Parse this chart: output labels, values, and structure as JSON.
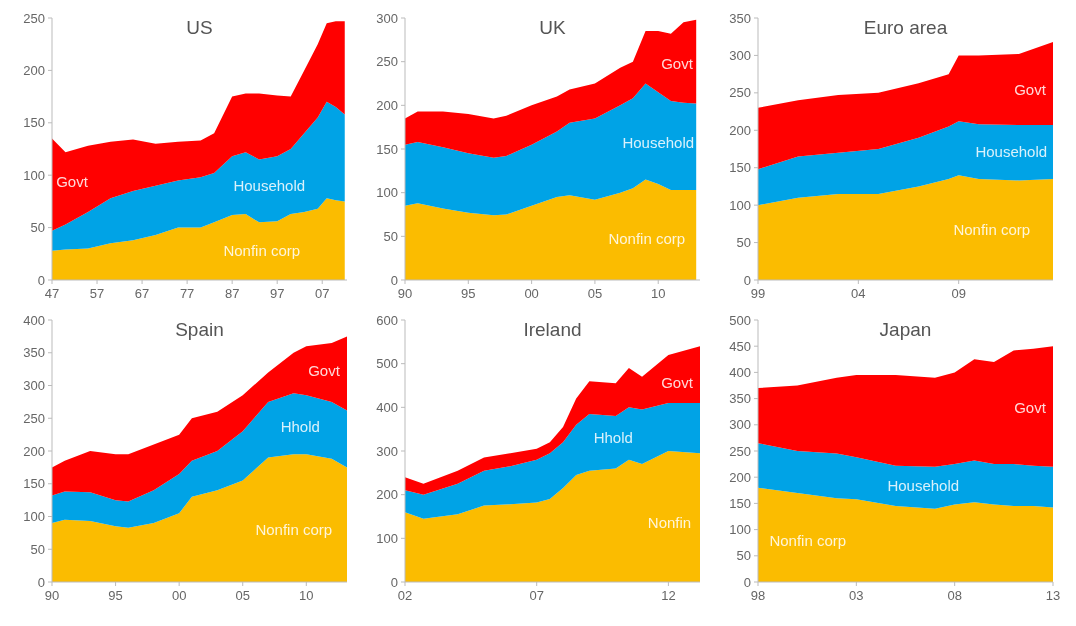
{
  "chart_data": [
    {
      "type": "area",
      "title": "US",
      "stacked": true,
      "x": [
        1947,
        1950,
        1955,
        1960,
        1965,
        1970,
        1975,
        1980,
        1983,
        1987,
        1990,
        1993,
        1997,
        2000,
        2003,
        2006,
        2008,
        2010,
        2012
      ],
      "xlim": [
        1947,
        2012.5
      ],
      "xticks": [
        {
          "value": 1947,
          "label": "47"
        },
        {
          "value": 1957,
          "label": "57"
        },
        {
          "value": 1967,
          "label": "67"
        },
        {
          "value": 1977,
          "label": "77"
        },
        {
          "value": 1987,
          "label": "87"
        },
        {
          "value": 1997,
          "label": "97"
        },
        {
          "value": 2007,
          "label": "07"
        }
      ],
      "ylim": [
        0,
        250
      ],
      "yticks": [
        0,
        50,
        100,
        150,
        200,
        250
      ],
      "series": [
        {
          "name": "Nonfin corp",
          "color": "#fbbc00",
          "values": [
            28,
            29,
            30,
            35,
            38,
            43,
            50,
            50,
            55,
            62,
            63,
            55,
            56,
            63,
            65,
            68,
            78,
            76,
            75
          ]
        },
        {
          "name": "Household",
          "color": "#00a3e6",
          "values": [
            19,
            24,
            35,
            43,
            47,
            47,
            45,
            48,
            47,
            56,
            59,
            60,
            62,
            62,
            75,
            87,
            92,
            89,
            83
          ]
        },
        {
          "name": "Govt",
          "color": "#ff0000",
          "values": [
            88,
            69,
            63,
            54,
            49,
            40,
            37,
            35,
            38,
            57,
            56,
            63,
            58,
            50,
            60,
            70,
            75,
            82,
            89
          ]
        }
      ]
    },
    {
      "type": "area",
      "title": "UK",
      "stacked": true,
      "x": [
        1990,
        1991,
        1993,
        1995,
        1997,
        1998,
        2000,
        2002,
        2003,
        2005,
        2007,
        2008,
        2009,
        2010,
        2011,
        2012,
        2013
      ],
      "xlim": [
        1990,
        2013.3
      ],
      "xticks": [
        {
          "value": 1990,
          "label": "90"
        },
        {
          "value": 1995,
          "label": "95"
        },
        {
          "value": 2000,
          "label": "00"
        },
        {
          "value": 2005,
          "label": "05"
        },
        {
          "value": 2010,
          "label": "10"
        }
      ],
      "ylim": [
        0,
        300
      ],
      "yticks": [
        0,
        50,
        100,
        150,
        200,
        250,
        300
      ],
      "series": [
        {
          "name": "Nonfin corp",
          "color": "#fbbc00",
          "values": [
            85,
            88,
            82,
            77,
            74,
            75,
            85,
            95,
            97,
            92,
            100,
            105,
            115,
            110,
            103,
            103,
            103
          ]
        },
        {
          "name": "Household",
          "color": "#00a3e6",
          "values": [
            70,
            70,
            70,
            68,
            66,
            67,
            70,
            75,
            83,
            93,
            100,
            103,
            110,
            105,
            102,
            100,
            99
          ]
        },
        {
          "name": "Govt",
          "color": "#ff0000",
          "values": [
            30,
            35,
            41,
            45,
            45,
            46,
            45,
            40,
            38,
            40,
            43,
            42,
            60,
            70,
            77,
            92,
            96
          ]
        }
      ]
    },
    {
      "type": "area",
      "title": "Euro area",
      "stacked": true,
      "x": [
        1999,
        2001,
        2003,
        2005,
        2007,
        2008.5,
        2009,
        2010,
        2012,
        2013.7
      ],
      "xlim": [
        1999,
        2013.7
      ],
      "xticks": [
        {
          "value": 1999,
          "label": "99"
        },
        {
          "value": 2004,
          "label": "04"
        },
        {
          "value": 2009,
          "label": "09"
        }
      ],
      "ylim": [
        0,
        350
      ],
      "yticks": [
        0,
        50,
        100,
        150,
        200,
        250,
        300,
        350
      ],
      "series": [
        {
          "name": "Nonfin corp",
          "color": "#fbbc00",
          "values": [
            100,
            110,
            115,
            115,
            125,
            135,
            140,
            135,
            133,
            135
          ]
        },
        {
          "name": "Household",
          "color": "#00a3e6",
          "values": [
            48,
            55,
            55,
            60,
            65,
            70,
            72,
            73,
            74,
            72
          ]
        },
        {
          "name": "Govt",
          "color": "#ff0000",
          "values": [
            82,
            75,
            77,
            75,
            73,
            70,
            88,
            92,
            95,
            111
          ]
        }
      ]
    },
    {
      "type": "area",
      "title": "Spain",
      "stacked": true,
      "x": [
        1990,
        1991,
        1993,
        1995,
        1996,
        1998,
        2000,
        2001,
        2003,
        2005,
        2007,
        2009,
        2010,
        2012,
        2013.2
      ],
      "xlim": [
        1990,
        2013.2
      ],
      "xticks": [
        {
          "value": 1990,
          "label": "90"
        },
        {
          "value": 1995,
          "label": "95"
        },
        {
          "value": 2000,
          "label": "00"
        },
        {
          "value": 2005,
          "label": "05"
        },
        {
          "value": 2010,
          "label": "10"
        }
      ],
      "ylim": [
        0,
        400
      ],
      "yticks": [
        0,
        50,
        100,
        150,
        200,
        250,
        300,
        350,
        400
      ],
      "series": [
        {
          "name": "Nonfin corp",
          "color": "#fbbc00",
          "values": [
            90,
            95,
            93,
            85,
            83,
            90,
            105,
            130,
            140,
            155,
            190,
            195,
            195,
            188,
            175
          ]
        },
        {
          "name": "Hhold",
          "color": "#00a3e6",
          "values": [
            42,
            43,
            44,
            40,
            40,
            50,
            60,
            55,
            60,
            75,
            85,
            93,
            90,
            87,
            87
          ]
        },
        {
          "name": "Govt",
          "color": "#ff0000",
          "values": [
            43,
            47,
            63,
            70,
            72,
            70,
            60,
            65,
            60,
            55,
            45,
            62,
            75,
            90,
            113
          ]
        }
      ]
    },
    {
      "type": "area",
      "title": "Ireland",
      "stacked": true,
      "x": [
        2002,
        2002.7,
        2004,
        2005,
        2006,
        2007,
        2007.5,
        2008,
        2008.5,
        2009,
        2010,
        2010.5,
        2011,
        2012,
        2013.2
      ],
      "xlim": [
        2002,
        2013.2
      ],
      "xticks": [
        {
          "value": 2002,
          "label": "02"
        },
        {
          "value": 2007,
          "label": "07"
        },
        {
          "value": 2012,
          "label": "12"
        }
      ],
      "ylim": [
        0,
        600
      ],
      "yticks": [
        0,
        100,
        200,
        300,
        400,
        500,
        600
      ],
      "series": [
        {
          "name": "Nonfin",
          "color": "#fbbc00",
          "values": [
            160,
            145,
            155,
            175,
            178,
            182,
            190,
            215,
            245,
            255,
            260,
            280,
            270,
            300,
            295
          ]
        },
        {
          "name": "Hhold",
          "color": "#00a3e6",
          "values": [
            50,
            55,
            70,
            80,
            87,
            98,
            105,
            105,
            115,
            130,
            120,
            120,
            125,
            110,
            115
          ]
        },
        {
          "name": "Govt",
          "color": "#ff0000",
          "values": [
            30,
            25,
            30,
            30,
            30,
            25,
            25,
            35,
            60,
            75,
            75,
            90,
            75,
            110,
            130
          ]
        }
      ]
    },
    {
      "type": "area",
      "title": "Japan",
      "stacked": true,
      "x": [
        1998,
        2000,
        2002,
        2003,
        2005,
        2007,
        2008,
        2009,
        2010,
        2011,
        2012,
        2013
      ],
      "xlim": [
        1998,
        2013
      ],
      "xticks": [
        {
          "value": 1998,
          "label": "98"
        },
        {
          "value": 2003,
          "label": "03"
        },
        {
          "value": 2008,
          "label": "08"
        },
        {
          "value": 2013,
          "label": "13"
        }
      ],
      "ylim": [
        0,
        500
      ],
      "yticks": [
        0,
        50,
        100,
        150,
        200,
        250,
        300,
        350,
        400,
        450,
        500
      ],
      "series": [
        {
          "name": "Nonfin corp",
          "color": "#fbbc00",
          "values": [
            180,
            170,
            160,
            158,
            145,
            140,
            148,
            152,
            148,
            145,
            145,
            142
          ]
        },
        {
          "name": "Household",
          "color": "#00a3e6",
          "values": [
            85,
            80,
            85,
            80,
            77,
            80,
            77,
            80,
            77,
            80,
            77,
            78
          ]
        },
        {
          "name": "Govt",
          "color": "#ff0000",
          "values": [
            105,
            125,
            145,
            157,
            173,
            170,
            175,
            193,
            195,
            217,
            223,
            230
          ]
        }
      ]
    }
  ]
}
